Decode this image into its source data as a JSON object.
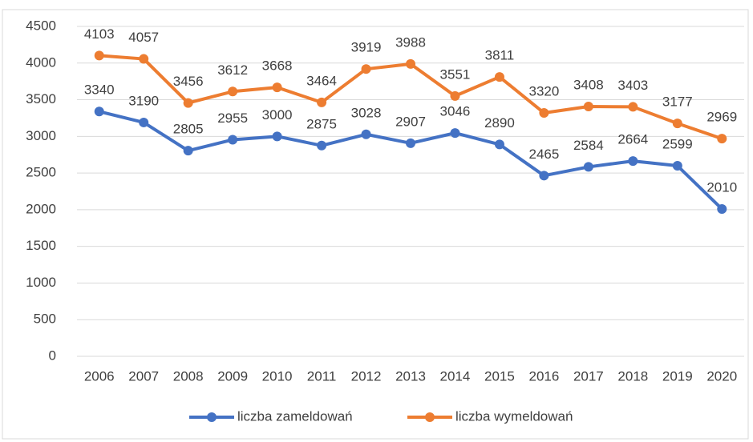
{
  "chart_data": {
    "type": "line",
    "categories": [
      "2006",
      "2007",
      "2008",
      "2009",
      "2010",
      "2011",
      "2012",
      "2013",
      "2014",
      "2015",
      "2016",
      "2017",
      "2018",
      "2019",
      "2020"
    ],
    "series": [
      {
        "name": "liczba zameldowań",
        "color": "#4472c4",
        "values": [
          3340,
          3190,
          2805,
          2955,
          3000,
          2875,
          3028,
          2907,
          3046,
          2890,
          2465,
          2584,
          2664,
          2599,
          2010
        ]
      },
      {
        "name": "liczba wymeldowań",
        "color": "#ed7d31",
        "values": [
          4103,
          4057,
          3456,
          3612,
          3668,
          3464,
          3919,
          3988,
          3551,
          3811,
          3320,
          3408,
          3403,
          3177,
          2969
        ]
      }
    ],
    "ylim": [
      0,
      4500
    ],
    "yticks": [
      0,
      500,
      1000,
      1500,
      2000,
      2500,
      3000,
      3500,
      4000,
      4500
    ],
    "grid": true,
    "legend": "bottom"
  }
}
